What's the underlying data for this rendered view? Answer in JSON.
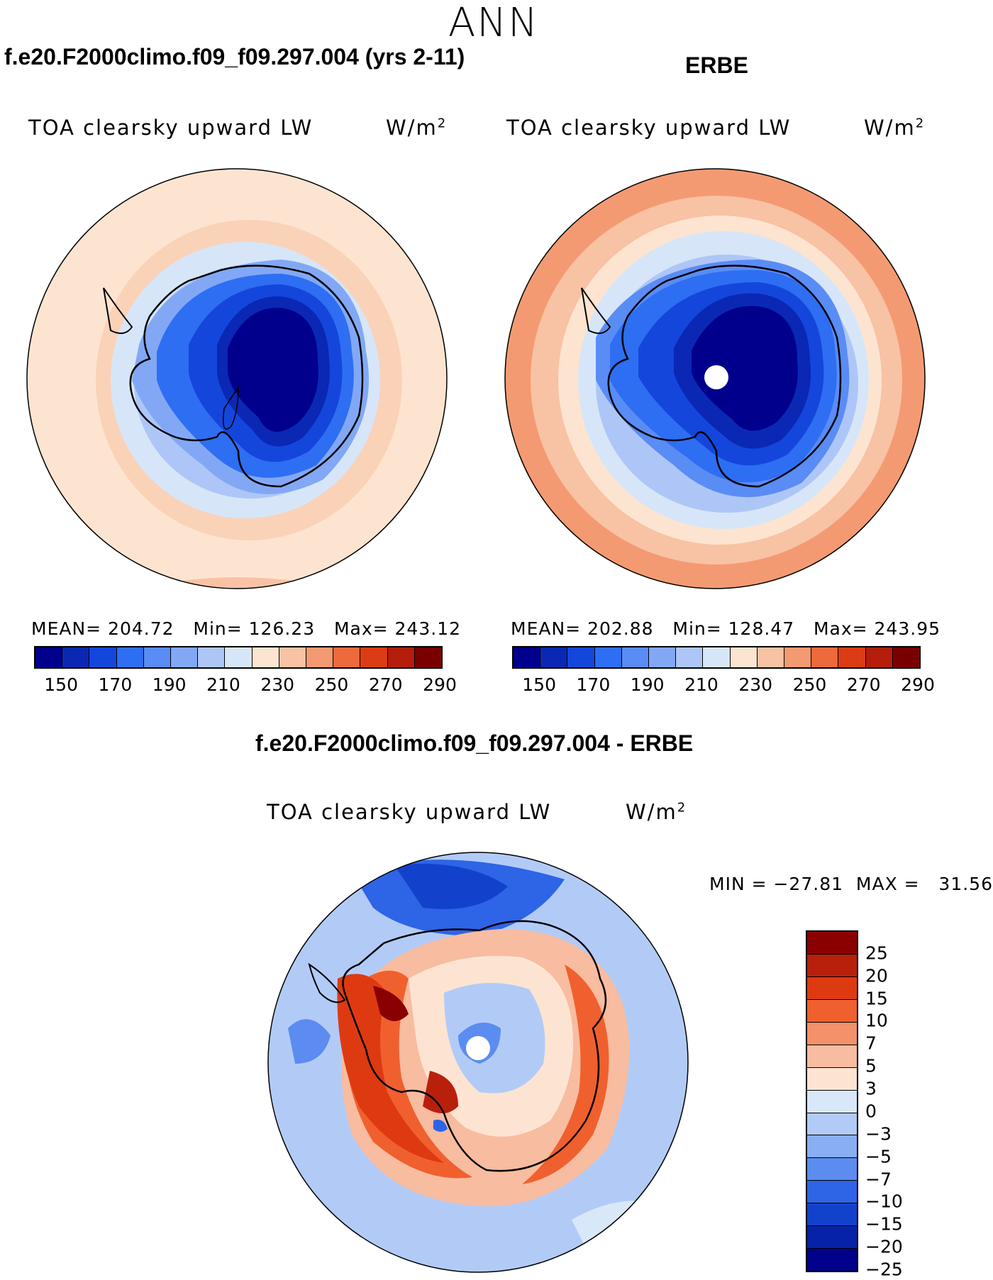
{
  "season": "ANN",
  "top_left": {
    "case_title": "f.e20.F2000climo.f09_f09.297.004 (yrs 2-11)",
    "variable": "TOA clearsky upward LW",
    "units": "W/m",
    "units_exp": "2",
    "stats": "MEAN= 204.72   Min= 126.23   Max= 243.12"
  },
  "top_right": {
    "case_title": "ERBE",
    "variable": "TOA clearsky upward LW",
    "units": "W/m",
    "units_exp": "2",
    "stats": "MEAN= 202.88   Min= 128.47   Max= 243.95"
  },
  "bottom": {
    "case_title": "f.e20.F2000climo.f09_f09.297.004 - ERBE",
    "variable": "TOA clearsky upward LW",
    "units": "W/m",
    "units_exp": "2",
    "minmax": "MIN = −27.81  MAX =   31.56"
  },
  "abs_colorbar": {
    "colors": [
      "#00008c",
      "#0a28b4",
      "#1446dc",
      "#2e6ef2",
      "#5a8cf5",
      "#82a8f5",
      "#aec6f7",
      "#d6e6f8",
      "#fde4d0",
      "#f8c2a4",
      "#f49a72",
      "#ec6a3c",
      "#dc3c14",
      "#b41e0a",
      "#7a0000"
    ],
    "tick_labels": [
      "150",
      "170",
      "190",
      "210",
      "230",
      "250",
      "270",
      "290"
    ]
  },
  "diff_colorbar": {
    "colors_top_to_bottom": [
      "#8a0000",
      "#b8200c",
      "#de3a12",
      "#f0602e",
      "#f4906a",
      "#f8bca0",
      "#fde4d2",
      "#d8e8f8",
      "#b2cbf6",
      "#8aaef4",
      "#5c8cf0",
      "#2e64e6",
      "#1242cc",
      "#0622a8",
      "#00008a"
    ],
    "tick_labels": [
      "25",
      "20",
      "15",
      "10",
      "7",
      "5",
      "3",
      "0",
      "−3",
      "−5",
      "−7",
      "−10",
      "−15",
      "−20",
      "−25"
    ]
  }
}
